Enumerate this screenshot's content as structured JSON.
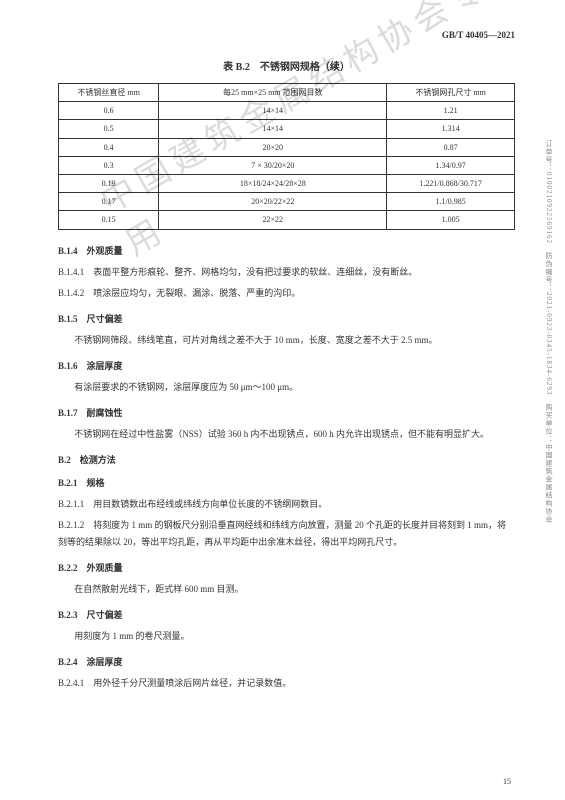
{
  "header_code": "GB/T 40405—2021",
  "table": {
    "title": "表 B.2　不锈钢网规格（续）",
    "columns": [
      "不锈钢丝直径\nmm",
      "每25 mm×25 mm 范围网目数",
      "不锈钢网孔尺寸\nmm"
    ],
    "rows": [
      [
        "0.6",
        "14×14",
        "1.21"
      ],
      [
        "0.5",
        "14×14",
        "1.314"
      ],
      [
        "0.4",
        "20×20",
        "0.87"
      ],
      [
        "0.3",
        "7 × 30/20×20",
        "1.34/0.97"
      ],
      [
        "0.19",
        "18×18/24×24/28×28",
        "1.221/0.868/30.717"
      ],
      [
        "0.17",
        "20×20/22×22",
        "1.1/0.985"
      ],
      [
        "0.15",
        "22×22",
        "1.005"
      ]
    ]
  },
  "sections": [
    {
      "hd": "B.1.4　外观质量"
    },
    {
      "num": "B.1.4.1",
      "text": "表面平整方形痕轮、整齐、网格均匀，没有把过要求的软丝、连细丝，没有断丝。"
    },
    {
      "num": "B.1.4.2",
      "text": "喷涂层应均匀，无裂眼、漏涂、脱落、严重的沟印。"
    },
    {
      "hd": "B.1.5　尺寸偏差"
    },
    {
      "para": "不锈钢网筛段、纬线笔直，可片对角线之差不大于 10 mm，长度、宽度之差不大于 2.5 mm。"
    },
    {
      "hd": "B.1.6　涂层厚度"
    },
    {
      "para": "有涂层要求的不锈钢网，涂层厚度应为 50 μm～100 μm。"
    },
    {
      "hd": "B.1.7　耐腐蚀性"
    },
    {
      "para": "不锈钢网在经过中性盐雾（NSS）试验 360 h 内不出现锈点，600 h 内允许出现锈点，但不能有明显扩大。"
    },
    {
      "hd": "B.2　检测方法"
    },
    {
      "hd": "B.2.1　规格"
    },
    {
      "num": "B.2.1.1",
      "text": "用目数镜数出布经线或纬线方向单位长度的不锈纲网数目。"
    },
    {
      "num": "B.2.1.2",
      "text": "将刻度为 1 mm 的钢板尺分别沿垂直网经线和纬线方向放置，测量 20 个孔距的长度并目将刻到 1 mm，将刻等的结果除以 20，等出平均孔距，再从平均距中出余准木丝径，得出平均网孔尺寸。"
    },
    {
      "hd": "B.2.2　外观质量"
    },
    {
      "para": "在自然散射光线下，距式样 600 mm 目测。"
    },
    {
      "hd": "B.2.3　尺寸偏差"
    },
    {
      "para": "用刻度为 1 mm 的卷尺测量。"
    },
    {
      "hd": "B.2.4　涂层厚度"
    },
    {
      "num": "B.2.4.1",
      "text": "用外径千分尺测量喷涂后网片丝径，并记录数值。"
    }
  ],
  "page_number": "15",
  "side": "订单号：0100210922569162　防伪编号：2021-0923-0345-1834-6293　购买单位：中国建筑金属结构协会",
  "watermark": "中国建筑金属结构协会专用"
}
